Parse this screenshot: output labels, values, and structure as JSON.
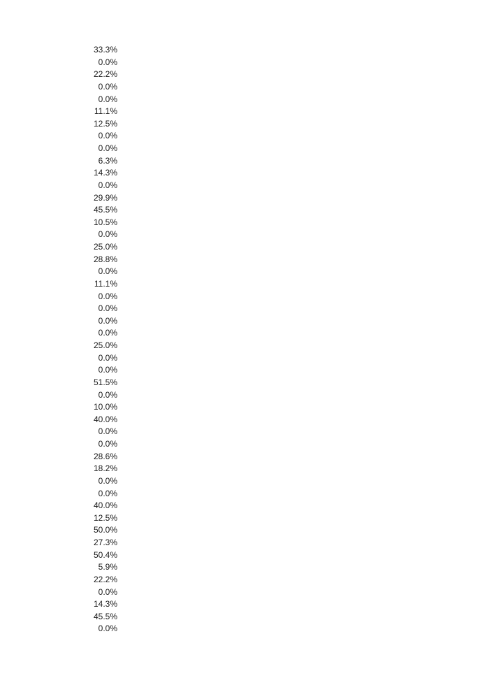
{
  "values": [
    "33.3%",
    "0.0%",
    "22.2%",
    "0.0%",
    "0.0%",
    "11.1%",
    "12.5%",
    "0.0%",
    "0.0%",
    "6.3%",
    "14.3%",
    "0.0%",
    "29.9%",
    "45.5%",
    "10.5%",
    "0.0%",
    "25.0%",
    "28.8%",
    "0.0%",
    "11.1%",
    "0.0%",
    "0.0%",
    "0.0%",
    "0.0%",
    "25.0%",
    "0.0%",
    "0.0%",
    "51.5%",
    "0.0%",
    "10.0%",
    "40.0%",
    "0.0%",
    "0.0%",
    "28.6%",
    "18.2%",
    "0.0%",
    "0.0%",
    "40.0%",
    "12.5%",
    "50.0%",
    "27.3%",
    "50.4%",
    "5.9%",
    "22.2%",
    "0.0%",
    "14.3%",
    "45.5%",
    "0.0%"
  ]
}
